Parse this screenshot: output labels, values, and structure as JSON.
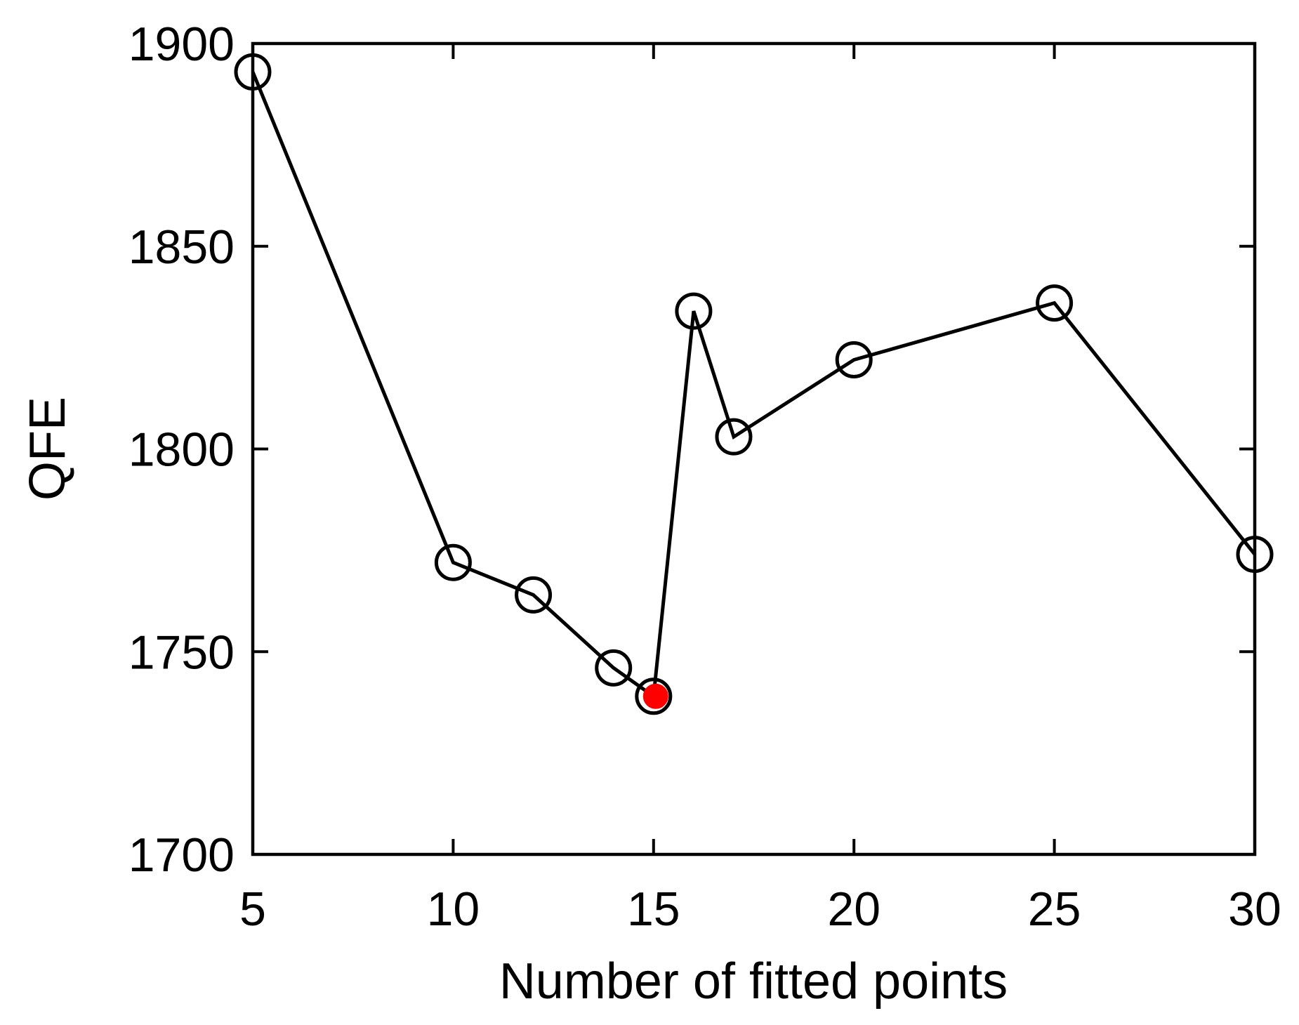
{
  "chart_data": {
    "type": "line",
    "title": "",
    "xlabel": "Number of fitted points",
    "ylabel": "QFE",
    "xlim": [
      5,
      30
    ],
    "ylim": [
      1700,
      1900
    ],
    "xticks": [
      5,
      10,
      15,
      20,
      25,
      30
    ],
    "yticks": [
      1700,
      1750,
      1800,
      1850,
      1900
    ],
    "xtick_labels": [
      "5",
      "10",
      "15",
      "20",
      "25",
      "30"
    ],
    "ytick_labels": [
      "1700",
      "1750",
      "1800",
      "1850",
      "1900"
    ],
    "grid": false,
    "series": [
      {
        "x": [
          5,
          10,
          12,
          14,
          15,
          16,
          17,
          20,
          25,
          30
        ],
        "y": [
          1893,
          1772,
          1764,
          1746,
          1739,
          1834,
          1803,
          1822,
          1836,
          1774
        ],
        "marker": "open-circle",
        "color": "#000000"
      }
    ],
    "highlight": {
      "x": 15,
      "y": 1739,
      "marker": "filled-circle",
      "color": "#ff0000"
    }
  }
}
